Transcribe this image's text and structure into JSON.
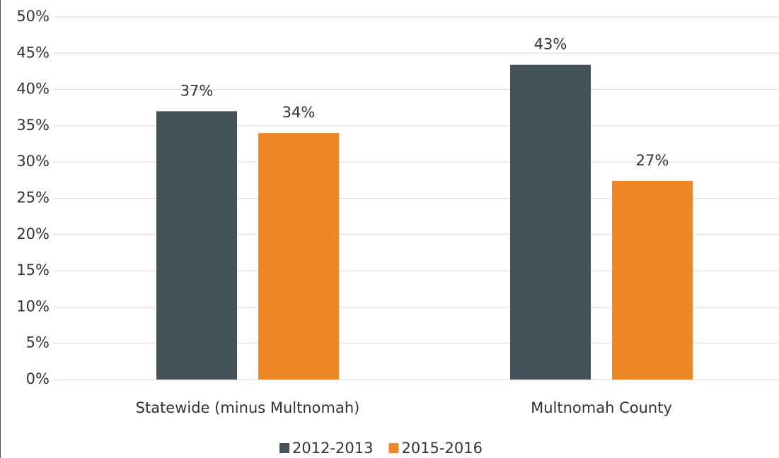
{
  "chart_data": {
    "type": "bar",
    "categories": [
      "Statewide (minus Multnomah)",
      "Multnomah County"
    ],
    "series": [
      {
        "name": "2012-2013",
        "color": "#465259",
        "values": [
          37,
          43.4
        ],
        "value_labels": [
          "37%",
          "43%"
        ]
      },
      {
        "name": "2015-2016",
        "color": "#ed8728",
        "values": [
          34,
          27.4
        ],
        "value_labels": [
          "34%",
          "27%"
        ]
      }
    ],
    "ylim": [
      0,
      50
    ],
    "yticks": [
      {
        "value": 0,
        "label": "0%"
      },
      {
        "value": 5,
        "label": "5%"
      },
      {
        "value": 10,
        "label": "10%"
      },
      {
        "value": 15,
        "label": "15%"
      },
      {
        "value": 20,
        "label": "20%"
      },
      {
        "value": 25,
        "label": "25%"
      },
      {
        "value": 30,
        "label": "30%"
      },
      {
        "value": 35,
        "label": "35%"
      },
      {
        "value": 40,
        "label": "40%"
      },
      {
        "value": 45,
        "label": "45%"
      },
      {
        "value": 50,
        "label": "50%"
      }
    ],
    "grid": true,
    "legend": "bottom"
  }
}
